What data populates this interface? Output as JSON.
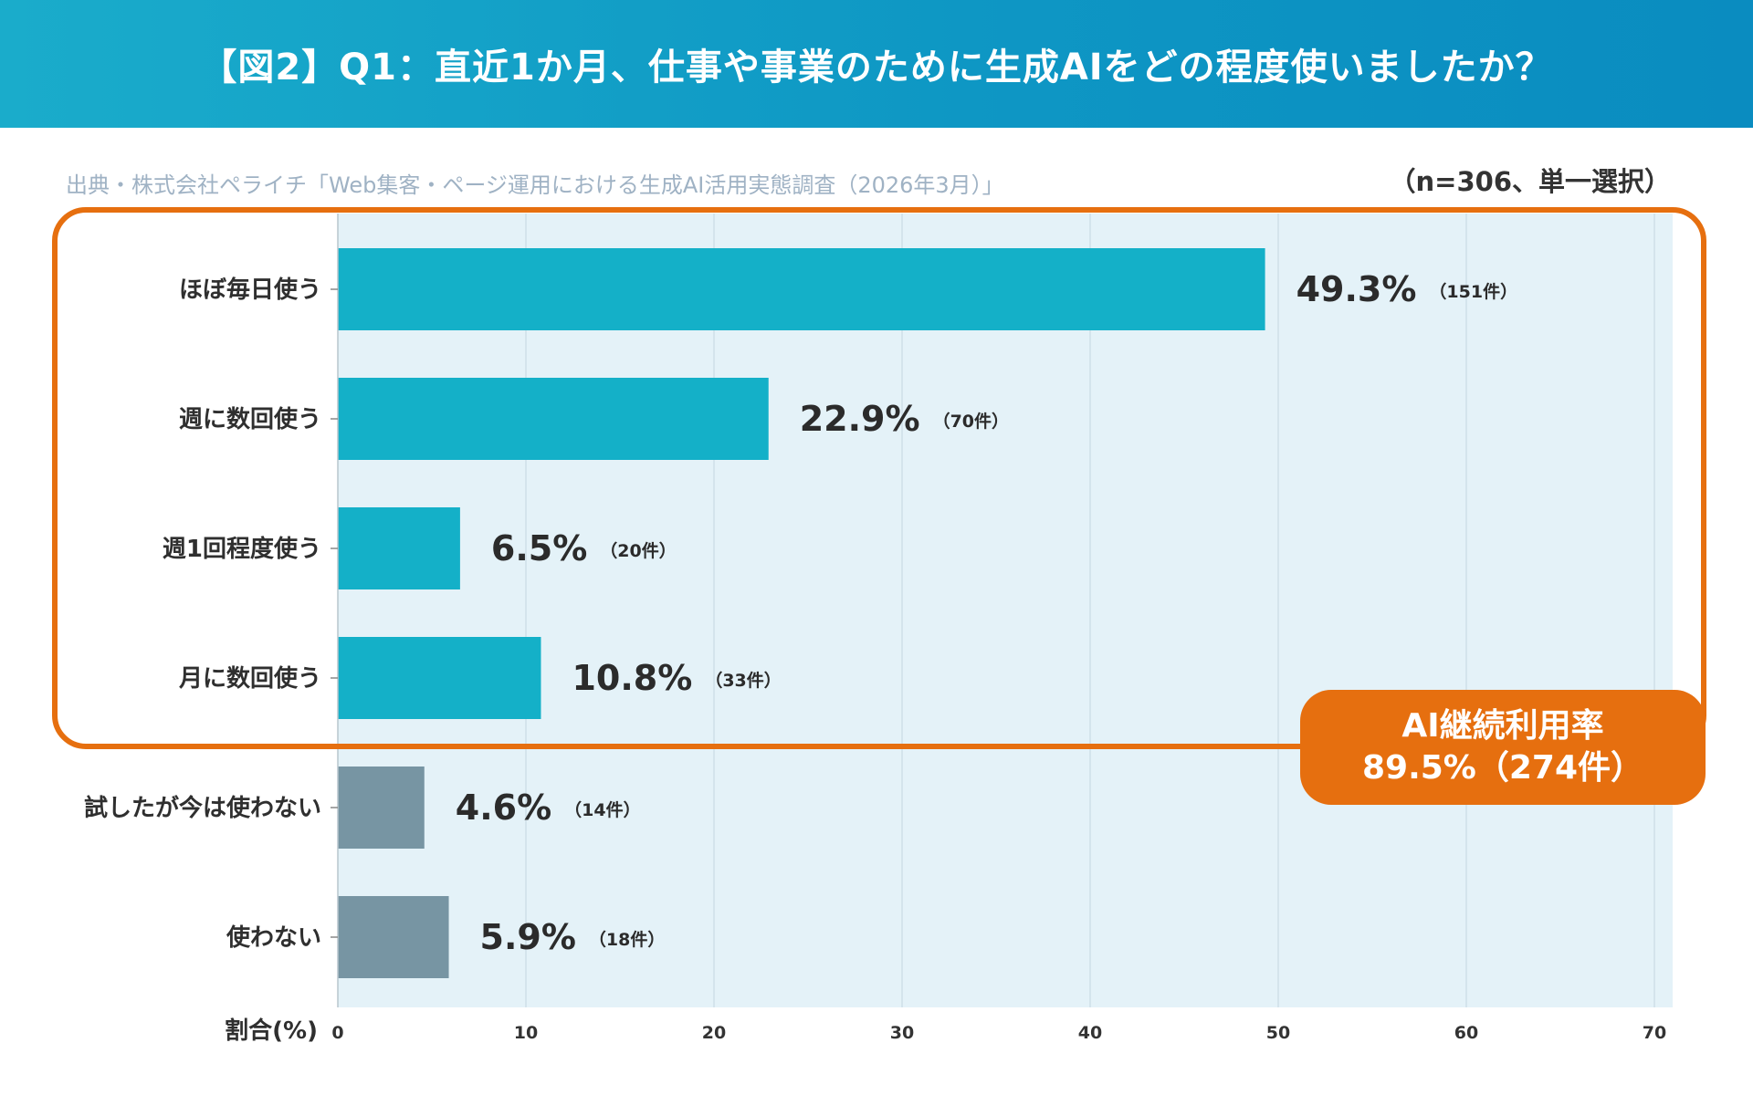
{
  "header": {
    "title": "【図2】Q1：直近1か月、仕事や事業のために生成AIをどの程度使いましたか？"
  },
  "source": "出典・株式会社ペライチ「Web集客・ページ運用における生成AI活用実態調査（2026年3月）」",
  "sample_note": "（n=306、単一選択）",
  "callout": {
    "line1": "AI継続利用率",
    "line2": "89.5%（274件）"
  },
  "colors": {
    "header": "#0e97c4",
    "bar_primary": "#14b0c8",
    "bar_secondary": "#7795a3",
    "plot_bg": "#e4f2f8",
    "highlight": "#e66f0f"
  },
  "chart_data": {
    "type": "bar",
    "orientation": "horizontal",
    "categories": [
      "ほぼ毎日使う",
      "週に数回使う",
      "週1回程度使う",
      "月に数回使う",
      "試したが今は使わない",
      "使わない"
    ],
    "values": [
      49.3,
      22.9,
      6.5,
      10.8,
      4.6,
      5.9
    ],
    "value_labels": [
      "49.3%",
      "22.9%",
      "6.5%",
      "10.8%",
      "4.6%",
      "5.9%"
    ],
    "count_labels": [
      "（151件）",
      "（70件）",
      "（20件）",
      "（33件）",
      "（14件）",
      "（18件）"
    ],
    "highlighted_group": [
      "ほぼ毎日使う",
      "週に数回使う",
      "週1回程度使う",
      "月に数回使う"
    ],
    "xlabel": "割合(%)",
    "xlim": [
      0,
      70
    ],
    "xticks": [
      0,
      10,
      20,
      30,
      40,
      50,
      60,
      70
    ],
    "grid": true
  }
}
